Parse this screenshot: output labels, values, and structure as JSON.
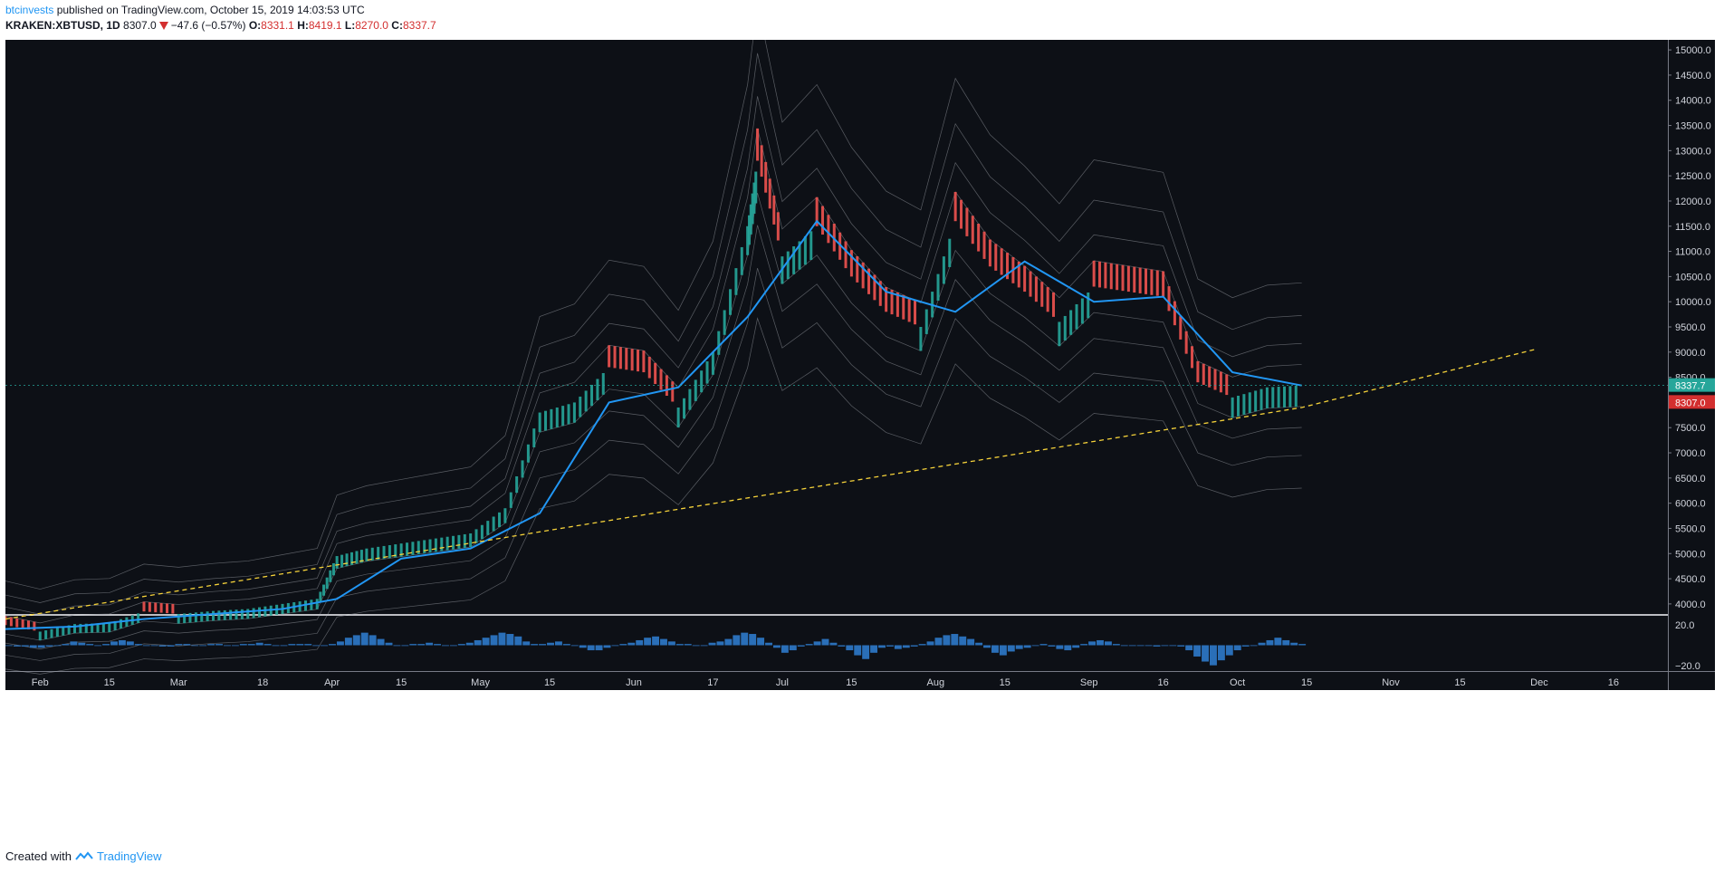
{
  "header": {
    "author": "btcinvests",
    "published_text": " published on TradingView.com, October 15, 2019 14:03:53 UTC",
    "symbol": "KRAKEN:XBTUSD, 1D",
    "last": "8307.0",
    "change": "−47.6 (−0.57%)",
    "o_label": "O:",
    "o_value": "8331.1",
    "h_label": "H:",
    "h_value": "8419.1",
    "l_label": "L:",
    "l_value": "8270.0",
    "c_label": "C:",
    "c_value": "8337.7"
  },
  "footer": {
    "created_with": "Created with",
    "brand": "TradingView"
  },
  "colors": {
    "background": "#0d1016",
    "up": "#26a69a",
    "down": "#ef5350",
    "ma": "#2196f3",
    "trendline": "#f5d23a",
    "histogram": "#2a6fb8",
    "band": "#b8bcc4"
  },
  "chart_data": [
    {
      "type": "line",
      "title": "",
      "price_scale_labels": [
        "15000.0",
        "14500.0",
        "14000.0",
        "13500.0",
        "13000.0",
        "12500.0",
        "12000.0",
        "11500.0",
        "11000.0",
        "10500.0",
        "10000.0",
        "9500.0",
        "9000.0",
        "8500.0",
        "8000.0",
        "7500.0",
        "7000.0",
        "6500.0",
        "6000.0",
        "5500.0",
        "5000.0",
        "4500.0",
        "4000.0"
      ],
      "ylim": [
        3800,
        15200
      ],
      "time_labels": [
        "Feb",
        "15",
        "Mar",
        "18",
        "Apr",
        "15",
        "May",
        "15",
        "Jun",
        "17",
        "Jul",
        "15",
        "Aug",
        "15",
        "Sep",
        "16",
        "Oct",
        "15",
        "Nov",
        "15",
        "Dec",
        "16"
      ],
      "last_price_labels": [
        {
          "value": 8337.7,
          "text": "8337.7",
          "color": "#26a69a"
        },
        {
          "value": 8307.0,
          "text": "8307.0",
          "color": "#d32f2f"
        }
      ],
      "series": [
        {
          "name": "",
          "x": [
            "2019-01-25",
            "2019-02-01",
            "2019-02-08",
            "2019-02-15",
            "2019-02-22",
            "2019-03-01",
            "2019-03-08",
            "2019-03-15",
            "2019-03-22",
            "2019-03-29",
            "2019-04-02",
            "2019-04-08",
            "2019-04-15",
            "2019-04-22",
            "2019-04-29",
            "2019-05-06",
            "2019-05-13",
            "2019-05-20",
            "2019-05-27",
            "2019-06-03",
            "2019-06-10",
            "2019-06-17",
            "2019-06-24",
            "2019-06-26",
            "2019-07-01",
            "2019-07-08",
            "2019-07-15",
            "2019-07-22",
            "2019-07-29",
            "2019-08-05",
            "2019-08-12",
            "2019-08-19",
            "2019-08-26",
            "2019-09-02",
            "2019-09-09",
            "2019-09-16",
            "2019-09-23",
            "2019-09-30",
            "2019-10-07",
            "2019-10-14"
          ],
          "close": [
            3580,
            3450,
            3600,
            3620,
            3850,
            3800,
            3860,
            3900,
            4000,
            4100,
            4950,
            5100,
            5200,
            5300,
            5400,
            5900,
            7800,
            8000,
            8700,
            8600,
            7900,
            9000,
            11500,
            12800,
            10900,
            11500,
            10500,
            9800,
            9500,
            11600,
            10700,
            10200,
            9600,
            10300,
            10200,
            10100,
            8400,
            8100,
            8300,
            8337.7
          ]
        },
        {
          "name": "",
          "x": [
            "2019-01-25",
            "2019-02-08",
            "2019-02-22",
            "2019-03-08",
            "2019-03-22",
            "2019-04-02",
            "2019-04-15",
            "2019-04-29",
            "2019-05-13",
            "2019-05-27",
            "2019-06-10",
            "2019-06-24",
            "2019-07-08",
            "2019-07-22",
            "2019-08-05",
            "2019-08-19",
            "2019-09-02",
            "2019-09-16",
            "2019-09-30",
            "2019-10-14"
          ],
          "values": [
            3500,
            3550,
            3700,
            3800,
            3900,
            4100,
            4900,
            5100,
            5800,
            8000,
            8300,
            9700,
            11600,
            10200,
            9800,
            10800,
            10000,
            10100,
            8600,
            8337
          ]
        },
        {
          "name": "",
          "x": [
            "2019-01-25",
            "2019-10-14",
            "2019-11-30"
          ],
          "values": [
            3700,
            7900,
            9050
          ]
        }
      ],
      "grid": false
    },
    {
      "type": "bar",
      "title": "",
      "scale_labels": [
        "20.0",
        "−20.0"
      ],
      "ylim": [
        -22,
        22
      ],
      "x_range": [
        "2019-01-25",
        "2019-10-15"
      ],
      "values": [
        0,
        -1,
        -1,
        -2,
        -2,
        -1,
        0,
        1,
        3,
        2,
        1,
        0,
        1,
        3,
        4,
        3,
        1,
        0,
        0,
        -1,
        -1,
        1,
        1,
        0,
        0,
        1,
        1,
        0,
        0,
        1,
        1,
        2,
        1,
        0,
        0,
        1,
        1,
        1,
        0,
        0,
        1,
        3,
        6,
        8,
        10,
        8,
        5,
        2,
        0,
        0,
        1,
        1,
        2,
        1,
        0,
        0,
        1,
        2,
        4,
        6,
        8,
        10,
        9,
        7,
        3,
        1,
        1,
        2,
        3,
        1,
        0,
        -2,
        -4,
        -4,
        -2,
        0,
        1,
        2,
        4,
        6,
        7,
        5,
        3,
        1,
        1,
        0,
        0,
        2,
        3,
        5,
        8,
        10,
        9,
        6,
        2,
        -2,
        -6,
        -4,
        -1,
        1,
        3,
        5,
        2,
        -1,
        -4,
        -8,
        -11,
        -6,
        -2,
        -1,
        -3,
        -2,
        -1,
        1,
        3,
        6,
        8,
        9,
        7,
        5,
        2,
        -2,
        -6,
        -8,
        -5,
        -3,
        -2,
        0,
        1,
        -1,
        -3,
        -4,
        -2,
        1,
        3,
        4,
        3,
        1,
        0,
        0,
        0,
        0,
        -1,
        0,
        0,
        -1,
        -4,
        -9,
        -13,
        -16,
        -12,
        -8,
        -4,
        -1,
        0,
        2,
        4,
        6,
        4,
        2,
        1
      ],
      "grid": false
    }
  ]
}
